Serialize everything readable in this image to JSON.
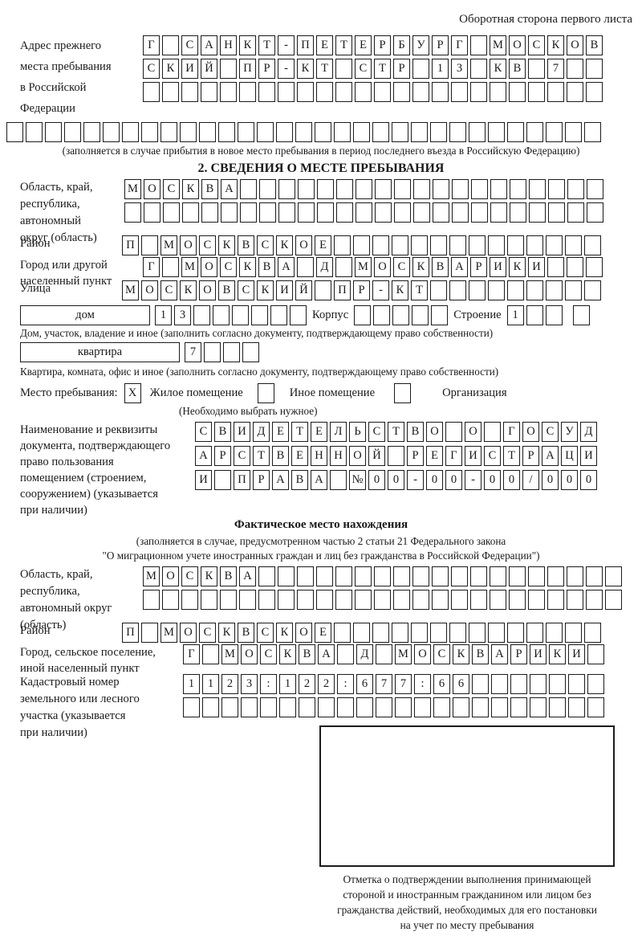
{
  "header": {
    "note": "Оборотная сторона первого листа"
  },
  "prev_address": {
    "label": "Адрес прежнего\nместа пребывания\nв Российской\nФедерации",
    "rows": [
      {
        "chars": "Г САНКТ-ПЕТЕРБУРГ МОСКОВ",
        "count": 24
      },
      {
        "chars": "СКИЙ ПР-КТ СТР 13 КВ 7",
        "count": 24
      },
      {
        "chars": "",
        "count": 24
      },
      {
        "chars": "",
        "count": 31
      }
    ],
    "note": "(заполняется в случае прибытия в новое место пребывания в период последнего въезда в Российскую Федерацию)"
  },
  "section2": {
    "title": "2. СВЕДЕНИЯ О МЕСТЕ ПРЕБЫВАНИЯ",
    "region": {
      "label": "Область, край,\nреспублика,\nавтономный\nокруг (область)",
      "rows": [
        {
          "chars": "МОСКВА",
          "count": 25
        },
        {
          "chars": "",
          "count": 25
        }
      ]
    },
    "district": {
      "label": "Район",
      "row": {
        "chars": "П МОСКВСКОЕ",
        "count": 25
      }
    },
    "city": {
      "label": "Город или другой\nнаселенный пункт",
      "row": {
        "chars": "Г МОСКВА Д МОСКВАРИКИ",
        "count": 24
      }
    },
    "street": {
      "label": "Улица",
      "row": {
        "chars": "МОСКОВСКИЙ ПР-КТ",
        "count": 25
      }
    },
    "house": {
      "box_label": "дом",
      "number": {
        "chars": "13",
        "count": 8
      },
      "korpus_label": "Корпус",
      "korpus": {
        "chars": "",
        "count": 5
      },
      "stroenie_label": "Строение",
      "stroenie": {
        "chars": "1",
        "count": 3
      },
      "extra": {
        "chars": "",
        "count": 1
      },
      "caption": "Дом, участок, владение и иное (заполнить согласно документу, подтверждающему право собственности)"
    },
    "apartment": {
      "box_label": "квартира",
      "number": {
        "chars": "7",
        "count": 4
      },
      "caption": "Квартира, комната, офис и иное (заполнить согласно документу, подтверждающему право собственности)"
    },
    "stay_type": {
      "label": "Место пребывания:",
      "options": [
        {
          "label": "Жилое помещение",
          "mark": "X"
        },
        {
          "label": "Иное помещение",
          "mark": ""
        },
        {
          "label": "Организация",
          "mark": ""
        }
      ],
      "note": "(Необходимо выбрать нужное)"
    },
    "document": {
      "label": "Наименование и реквизиты\nдокумента, подтверждающего\nправо пользования\nпомещением (строением,\nсооружением) (указывается\nпри наличии)",
      "rows": [
        {
          "chars": "СВИДЕТЕЛЬСТВО О ГОСУД",
          "count": 21
        },
        {
          "chars": "АРСТВЕННОЙ РЕГИСТРАЦИ",
          "count": 21
        },
        {
          "chars": "И ПРАВА №00-00-00/000",
          "count": 21
        }
      ]
    }
  },
  "actual_location": {
    "title": "Фактическое место нахождения",
    "note": "(заполняется в случае, предусмотренном частью 2 статьи 21 Федерального закона\n\"О миграционном учете иностранных граждан и лиц без гражданства в Российской Федерации\")",
    "region": {
      "label": "Область, край,\nреспублика,\nавтономный округ\n(область)",
      "rows": [
        {
          "chars": "МОСКВА",
          "count": 25
        },
        {
          "chars": "",
          "count": 25
        }
      ]
    },
    "district": {
      "label": "Район",
      "row": {
        "chars": "П МОСКВСКОЕ",
        "count": 25
      }
    },
    "city": {
      "label": "Город, сельское поселение,\nиной населенный пункт",
      "row": {
        "chars": "Г МОСКВА Д МОСКВАРИКИ",
        "count": 22
      }
    },
    "cadastre": {
      "label": "Кадастровый номер\nземельного или лесного\nучастка (указывается\nпри наличии)",
      "rows": [
        {
          "chars": "1123:122:677:66",
          "count": 22
        },
        {
          "chars": "",
          "count": 22
        }
      ]
    },
    "stamp": {
      "caption": "Отметка о подтверждении выполнения принимающей\nстороной и иностранным гражданином или лицом без\nгражданства действий, необходимых для его постановки\nна учет по месту пребывания"
    }
  }
}
